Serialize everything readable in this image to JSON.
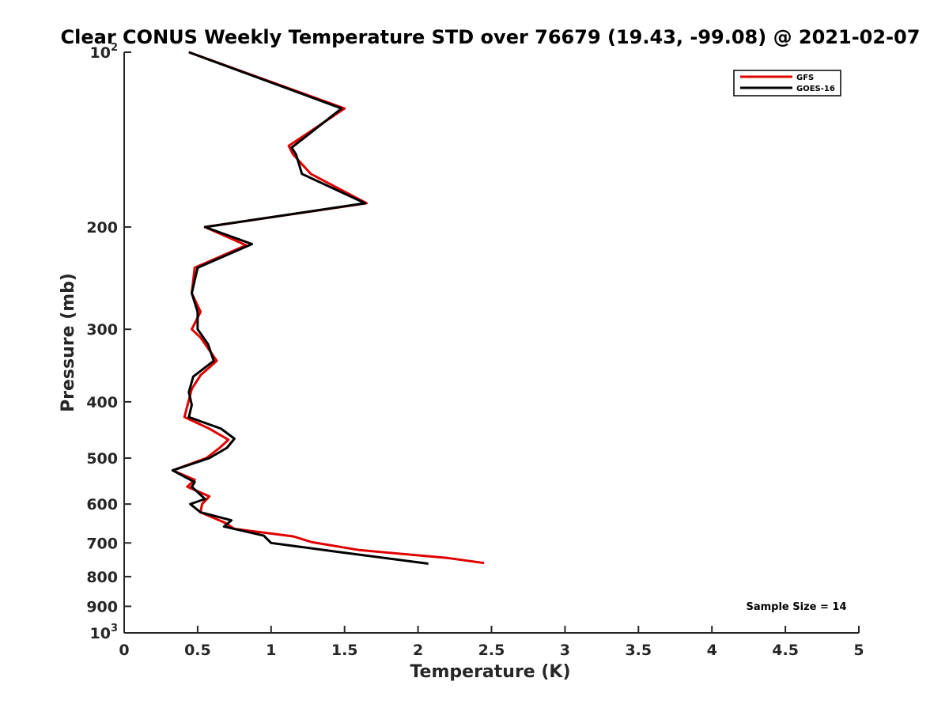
{
  "chart_data": {
    "type": "line",
    "title": "Clear CONUS Weekly Temperature STD over 76679 (19.43, -99.08) @ 2021-02-07",
    "xlabel": "Temperature (K)",
    "ylabel": "Pressure (mb)",
    "xlim": [
      0,
      5
    ],
    "ylim": [
      100,
      1000
    ],
    "y_scale": "log",
    "y_reversed": true,
    "grid": false,
    "legend_position": "top-right",
    "x_ticks": [
      "0",
      "0.5",
      "1",
      "1.5",
      "2",
      "2.5",
      "3",
      "3.5",
      "4",
      "4.5",
      "5"
    ],
    "y_ticks": [
      {
        "value": 100,
        "base": "10",
        "exp": "2"
      },
      {
        "value": 200,
        "label": "200"
      },
      {
        "value": 300,
        "label": "300"
      },
      {
        "value": 400,
        "label": "400"
      },
      {
        "value": 500,
        "label": "500"
      },
      {
        "value": 600,
        "label": "600"
      },
      {
        "value": 700,
        "label": "700"
      },
      {
        "value": 800,
        "label": "800"
      },
      {
        "value": 900,
        "label": "900"
      },
      {
        "value": 1000,
        "base": "10",
        "exp": "3"
      }
    ],
    "annotation": "Sample Size = 14",
    "series": [
      {
        "name": "GFS",
        "color": "#e00000",
        "points": [
          [
            0.44,
            100
          ],
          [
            1.5,
            125
          ],
          [
            1.12,
            145
          ],
          [
            1.15,
            150
          ],
          [
            1.27,
            162
          ],
          [
            1.65,
            182
          ],
          [
            0.55,
            200
          ],
          [
            0.83,
            215
          ],
          [
            0.48,
            235
          ],
          [
            0.46,
            260
          ],
          [
            0.52,
            280
          ],
          [
            0.46,
            300
          ],
          [
            0.52,
            310
          ],
          [
            0.63,
            340
          ],
          [
            0.52,
            360
          ],
          [
            0.46,
            380
          ],
          [
            0.41,
            425
          ],
          [
            0.58,
            445
          ],
          [
            0.71,
            465
          ],
          [
            0.65,
            480
          ],
          [
            0.56,
            500
          ],
          [
            0.33,
            525
          ],
          [
            0.48,
            545
          ],
          [
            0.43,
            560
          ],
          [
            0.58,
            582
          ],
          [
            0.53,
            600
          ],
          [
            0.52,
            620
          ],
          [
            0.68,
            645
          ],
          [
            0.75,
            662
          ],
          [
            1.15,
            682
          ],
          [
            1.28,
            698
          ],
          [
            1.6,
            720
          ],
          [
            2.2,
            743
          ],
          [
            2.45,
            758
          ]
        ]
      },
      {
        "name": "GOES-16",
        "color": "#000000",
        "points": [
          [
            0.44,
            100
          ],
          [
            1.48,
            125
          ],
          [
            1.14,
            146
          ],
          [
            1.17,
            150
          ],
          [
            1.21,
            162
          ],
          [
            1.64,
            182
          ],
          [
            0.55,
            200
          ],
          [
            0.87,
            214
          ],
          [
            0.5,
            235
          ],
          [
            0.46,
            260
          ],
          [
            0.5,
            280
          ],
          [
            0.5,
            300
          ],
          [
            0.57,
            318
          ],
          [
            0.61,
            340
          ],
          [
            0.47,
            362
          ],
          [
            0.44,
            385
          ],
          [
            0.46,
            405
          ],
          [
            0.44,
            425
          ],
          [
            0.66,
            445
          ],
          [
            0.75,
            463
          ],
          [
            0.7,
            480
          ],
          [
            0.58,
            500
          ],
          [
            0.33,
            525
          ],
          [
            0.48,
            550
          ],
          [
            0.46,
            560
          ],
          [
            0.55,
            588
          ],
          [
            0.45,
            600
          ],
          [
            0.52,
            620
          ],
          [
            0.73,
            640
          ],
          [
            0.68,
            656
          ],
          [
            0.95,
            680
          ],
          [
            1.0,
            700
          ],
          [
            1.45,
            725
          ],
          [
            2.07,
            760
          ]
        ]
      }
    ]
  }
}
